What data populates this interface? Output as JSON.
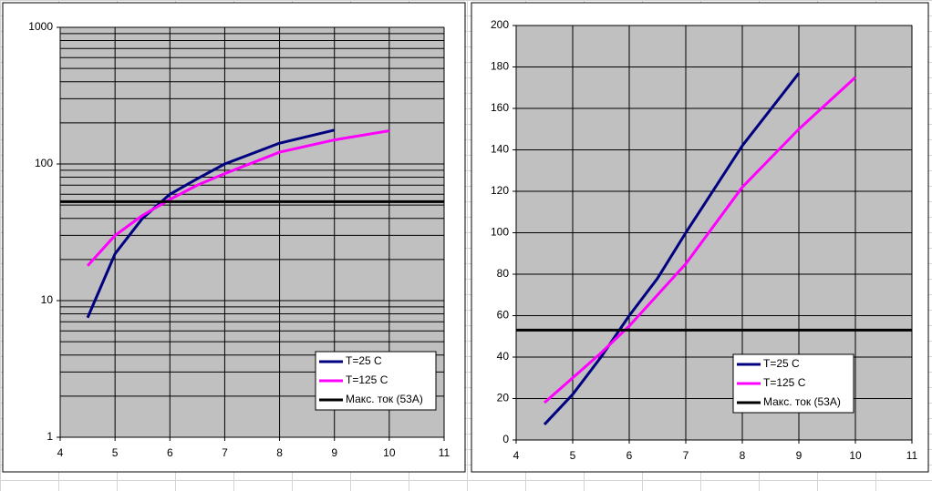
{
  "chart_data": [
    {
      "type": "line",
      "ylog": true,
      "grid": true,
      "minor_grid": true,
      "legend": "lower right",
      "xlim": [
        4,
        11
      ],
      "xticks": [
        4,
        5,
        6,
        7,
        8,
        9,
        10,
        11
      ],
      "ylim": [
        1,
        1000
      ],
      "yticks": [
        1,
        10,
        100,
        1000
      ],
      "series": [
        {
          "name": "T=25 C",
          "color": "#000080",
          "x": [
            4.5,
            5,
            5.5,
            6,
            6.5,
            7,
            8,
            9
          ],
          "values": [
            7.5,
            22,
            40,
            60,
            78,
            100,
            142,
            177
          ]
        },
        {
          "name": "T=125 C",
          "color": "#ff00ff",
          "x": [
            4.5,
            5,
            5.5,
            6,
            6.5,
            7,
            8,
            9,
            10
          ],
          "values": [
            18,
            30,
            42,
            55,
            70,
            85,
            122,
            150,
            175
          ]
        },
        {
          "name": "Макс. ток (53A)",
          "color": "#000000",
          "x": [
            4,
            11
          ],
          "values": [
            53,
            53
          ]
        }
      ]
    },
    {
      "type": "line",
      "ylog": false,
      "grid": true,
      "minor_grid": false,
      "legend": "lower center",
      "xlim": [
        4,
        11
      ],
      "xticks": [
        4,
        5,
        6,
        7,
        8,
        9,
        10,
        11
      ],
      "ylim": [
        0,
        200
      ],
      "yticks": [
        0,
        20,
        40,
        60,
        80,
        100,
        120,
        140,
        160,
        180,
        200
      ],
      "series": [
        {
          "name": "T=25 C",
          "color": "#000080",
          "x": [
            4.5,
            5,
            5.5,
            6,
            6.5,
            7,
            8,
            9
          ],
          "values": [
            7.5,
            22,
            40,
            60,
            78,
            100,
            142,
            177
          ]
        },
        {
          "name": "T=125 C",
          "color": "#ff00ff",
          "x": [
            4.5,
            5,
            5.5,
            6,
            6.5,
            7,
            8,
            9,
            10
          ],
          "values": [
            18,
            30,
            42,
            55,
            70,
            85,
            122,
            150,
            175
          ]
        },
        {
          "name": "Макс. ток (53A)",
          "color": "#000000",
          "x": [
            4,
            11
          ],
          "values": [
            53,
            53
          ]
        }
      ]
    }
  ]
}
